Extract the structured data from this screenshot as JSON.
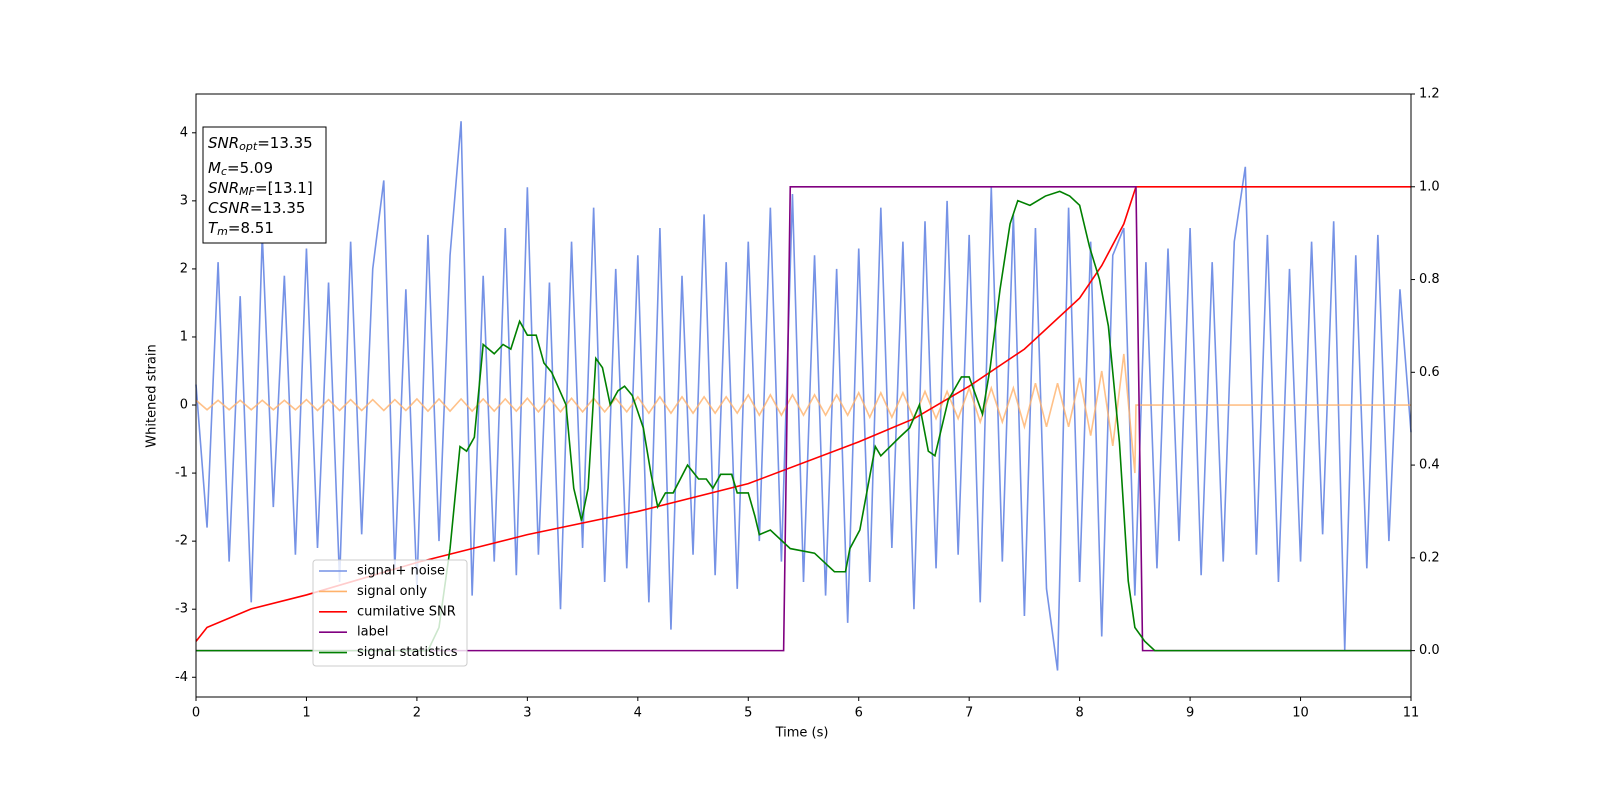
{
  "chart_data": {
    "type": "line",
    "xlabel": "Time (s)",
    "ylabel": "Whitened strain",
    "xlim": [
      0,
      11
    ],
    "xticks": [
      0,
      1,
      2,
      3,
      4,
      5,
      6,
      7,
      8,
      9,
      10,
      11
    ],
    "ylim": [
      -4.29,
      4.57
    ],
    "yticks": [
      -4,
      -3,
      -2,
      -1,
      0,
      1,
      2,
      3,
      4
    ],
    "y2lim": [
      -0.1,
      1.2
    ],
    "y2ticks": [
      {
        "value": 0,
        "label": "0.0"
      },
      0.2,
      0.4,
      0.6,
      0.8,
      {
        "value": 1,
        "label": "1.0"
      },
      1.2
    ],
    "legend": "lower left",
    "annotations": [
      {
        "main": "SNR",
        "sub": "opt",
        "rest": "=13.35"
      },
      {
        "main": "M",
        "sub": "c",
        "rest": "=5.09"
      },
      {
        "main": "SNR",
        "sub": "MF",
        "rest": "=[13.1]"
      },
      {
        "main": "CSNR",
        "rest": "=13.35"
      },
      {
        "main": "T",
        "sub": "m",
        "rest": "=8.51"
      }
    ],
    "series": [
      {
        "name": "signal+ noise",
        "color": "#7592e6",
        "x": [
          0,
          0.1,
          0.2,
          0.3,
          0.4,
          0.5,
          0.6,
          0.7,
          0.8,
          0.9,
          1,
          1.1,
          1.2,
          1.3,
          1.4,
          1.5,
          1.6,
          1.7,
          1.8,
          1.9,
          2,
          2.1,
          2.2,
          2.3,
          2.4,
          2.5,
          2.6,
          2.7,
          2.8,
          2.9,
          3,
          3.1,
          3.2,
          3.3,
          3.4,
          3.5,
          3.6,
          3.7,
          3.8,
          3.9,
          4,
          4.1,
          4.2,
          4.3,
          4.4,
          4.5,
          4.6,
          4.7,
          4.8,
          4.9,
          5,
          5.1,
          5.2,
          5.3,
          5.4,
          5.5,
          5.6,
          5.7,
          5.8,
          5.9,
          6,
          6.1,
          6.2,
          6.3,
          6.4,
          6.5,
          6.6,
          6.7,
          6.8,
          6.9,
          7,
          7.1,
          7.2,
          7.3,
          7.4,
          7.5,
          7.6,
          7.7,
          7.8,
          7.9,
          8,
          8.1,
          8.2,
          8.3,
          8.4,
          8.5,
          8.6,
          8.7,
          8.8,
          8.9,
          9,
          9.1,
          9.2,
          9.3,
          9.4,
          9.5,
          9.6,
          9.7,
          9.8,
          9.9,
          10,
          10.1,
          10.2,
          10.3,
          10.4,
          10.5,
          10.6,
          10.7,
          10.8,
          10.9,
          11
        ],
        "values": [
          0.3,
          -1.8,
          2.1,
          -2.3,
          1.6,
          -2.9,
          2.5,
          -1.5,
          1.9,
          -2.2,
          2.3,
          -2.1,
          1.8,
          -2.6,
          2.4,
          -1.9,
          2.0,
          3.3,
          -2.4,
          1.7,
          -2.7,
          2.5,
          -2.0,
          2.2,
          4.17,
          -2.8,
          1.9,
          -2.3,
          2.6,
          -2.5,
          3.2,
          -2.2,
          1.8,
          -3.0,
          2.4,
          -2.1,
          2.9,
          -2.6,
          2.0,
          -2.4,
          2.2,
          -2.9,
          2.6,
          -3.3,
          1.9,
          -2.2,
          2.8,
          -2.5,
          2.1,
          -2.7,
          2.4,
          -2.0,
          2.9,
          -2.3,
          3.1,
          -2.6,
          2.2,
          -2.8,
          2.0,
          -3.2,
          2.3,
          -2.6,
          2.9,
          -2.1,
          2.4,
          -3.0,
          2.7,
          -2.4,
          3.0,
          -2.2,
          2.5,
          -2.9,
          3.2,
          -2.3,
          2.8,
          -3.1,
          2.6,
          -2.7,
          -3.9,
          2.9,
          -2.6,
          2.4,
          -3.4,
          2.2,
          2.6,
          -2.8,
          2.1,
          -2.4,
          2.3,
          -2.0,
          2.6,
          -2.5,
          2.1,
          -2.3,
          2.4,
          3.5,
          -2.2,
          2.5,
          -2.6,
          2.0,
          -2.3,
          2.4,
          -1.9,
          2.7,
          -3.6,
          2.2,
          -2.4,
          2.5,
          -2.0,
          1.7,
          -0.4
        ]
      },
      {
        "name": "signal only",
        "color": "#ffb26b",
        "x": [
          0,
          0.1,
          0.2,
          0.3,
          0.4,
          0.5,
          0.6,
          0.7,
          0.8,
          0.9,
          1,
          1.1,
          1.2,
          1.3,
          1.4,
          1.5,
          1.6,
          1.7,
          1.8,
          1.9,
          2,
          2.1,
          2.2,
          2.3,
          2.4,
          2.5,
          2.6,
          2.7,
          2.8,
          2.9,
          3,
          3.1,
          3.2,
          3.3,
          3.4,
          3.5,
          3.6,
          3.7,
          3.8,
          3.9,
          4,
          4.1,
          4.2,
          4.3,
          4.4,
          4.5,
          4.6,
          4.7,
          4.8,
          4.9,
          5,
          5.1,
          5.2,
          5.3,
          5.4,
          5.5,
          5.6,
          5.7,
          5.8,
          5.9,
          6,
          6.1,
          6.2,
          6.3,
          6.4,
          6.5,
          6.6,
          6.7,
          6.8,
          6.9,
          7,
          7.1,
          7.2,
          7.3,
          7.4,
          7.5,
          7.6,
          7.7,
          7.8,
          7.9,
          8,
          8.1,
          8.2,
          8.3,
          8.4,
          8.5,
          8.51,
          11
        ],
        "values": [
          0.07,
          -0.07,
          0.07,
          -0.07,
          0.07,
          -0.07,
          0.07,
          -0.07,
          0.07,
          -0.07,
          0.08,
          -0.08,
          0.08,
          -0.08,
          0.08,
          -0.08,
          0.08,
          -0.08,
          0.08,
          -0.08,
          0.09,
          -0.09,
          0.09,
          -0.09,
          0.09,
          -0.09,
          0.09,
          -0.09,
          0.09,
          -0.09,
          0.1,
          -0.1,
          0.1,
          -0.1,
          0.1,
          -0.1,
          0.1,
          -0.1,
          0.1,
          -0.1,
          0.12,
          -0.12,
          0.12,
          -0.12,
          0.12,
          -0.12,
          0.12,
          -0.12,
          0.12,
          -0.12,
          0.15,
          -0.15,
          0.15,
          -0.15,
          0.15,
          -0.15,
          0.15,
          -0.15,
          0.15,
          -0.15,
          0.18,
          -0.18,
          0.18,
          -0.18,
          0.18,
          -0.2,
          0.2,
          -0.2,
          0.2,
          -0.2,
          0.25,
          -0.25,
          0.25,
          -0.25,
          0.25,
          -0.32,
          0.32,
          -0.32,
          0.32,
          -0.32,
          0.4,
          -0.45,
          0.5,
          -0.6,
          0.75,
          -1.0,
          0,
          0
        ]
      },
      {
        "name": "cumilative SNR",
        "color": "#ff0000",
        "axis": "y2",
        "x": [
          0,
          0.1,
          0.5,
          1,
          2,
          3,
          4,
          5,
          6,
          6.5,
          7,
          7.5,
          8,
          8.2,
          8.4,
          8.51,
          11
        ],
        "values": [
          0.02,
          0.05,
          0.09,
          0.12,
          0.19,
          0.25,
          0.3,
          0.36,
          0.45,
          0.5,
          0.57,
          0.65,
          0.76,
          0.83,
          0.92,
          1.0,
          1.0
        ]
      },
      {
        "name": "label",
        "color": "#800080",
        "axis": "y2",
        "x": [
          0,
          5.32,
          5.38,
          8.51,
          8.57,
          11
        ],
        "values": [
          0,
          0,
          1,
          1,
          0,
          0
        ]
      },
      {
        "name": "signal statistics",
        "color": "#008000",
        "axis": "y2",
        "x": [
          0,
          2.1,
          2.2,
          2.3,
          2.39,
          2.45,
          2.52,
          2.6,
          2.7,
          2.78,
          2.85,
          2.93,
          3.0,
          3.08,
          3.15,
          3.22,
          3.35,
          3.42,
          3.49,
          3.55,
          3.62,
          3.68,
          3.75,
          3.82,
          3.88,
          3.95,
          4.05,
          4.12,
          4.18,
          4.25,
          4.32,
          4.45,
          4.55,
          4.62,
          4.68,
          4.75,
          4.85,
          4.9,
          5.0,
          5.06,
          5.1,
          5.2,
          5.38,
          5.6,
          5.78,
          5.88,
          5.92,
          6.01,
          6.15,
          6.2,
          6.37,
          6.46,
          6.55,
          6.63,
          6.69,
          6.81,
          6.93,
          7.0,
          7.12,
          7.19,
          7.28,
          7.37,
          7.44,
          7.55,
          7.69,
          7.82,
          7.91,
          8.0,
          8.09,
          8.18,
          8.26,
          8.36,
          8.44,
          8.5,
          8.59,
          8.68,
          11
        ],
        "values": [
          0,
          0,
          0.05,
          0.22,
          0.44,
          0.43,
          0.46,
          0.66,
          0.64,
          0.66,
          0.65,
          0.71,
          0.68,
          0.68,
          0.62,
          0.6,
          0.53,
          0.35,
          0.28,
          0.35,
          0.63,
          0.61,
          0.53,
          0.56,
          0.57,
          0.55,
          0.48,
          0.38,
          0.31,
          0.34,
          0.34,
          0.4,
          0.37,
          0.37,
          0.35,
          0.38,
          0.38,
          0.34,
          0.34,
          0.29,
          0.25,
          0.26,
          0.22,
          0.21,
          0.17,
          0.17,
          0.22,
          0.26,
          0.44,
          0.42,
          0.46,
          0.48,
          0.53,
          0.43,
          0.42,
          0.54,
          0.59,
          0.59,
          0.51,
          0.61,
          0.78,
          0.92,
          0.97,
          0.96,
          0.98,
          0.99,
          0.98,
          0.96,
          0.87,
          0.8,
          0.7,
          0.45,
          0.15,
          0.05,
          0.02,
          0,
          0
        ]
      }
    ]
  }
}
